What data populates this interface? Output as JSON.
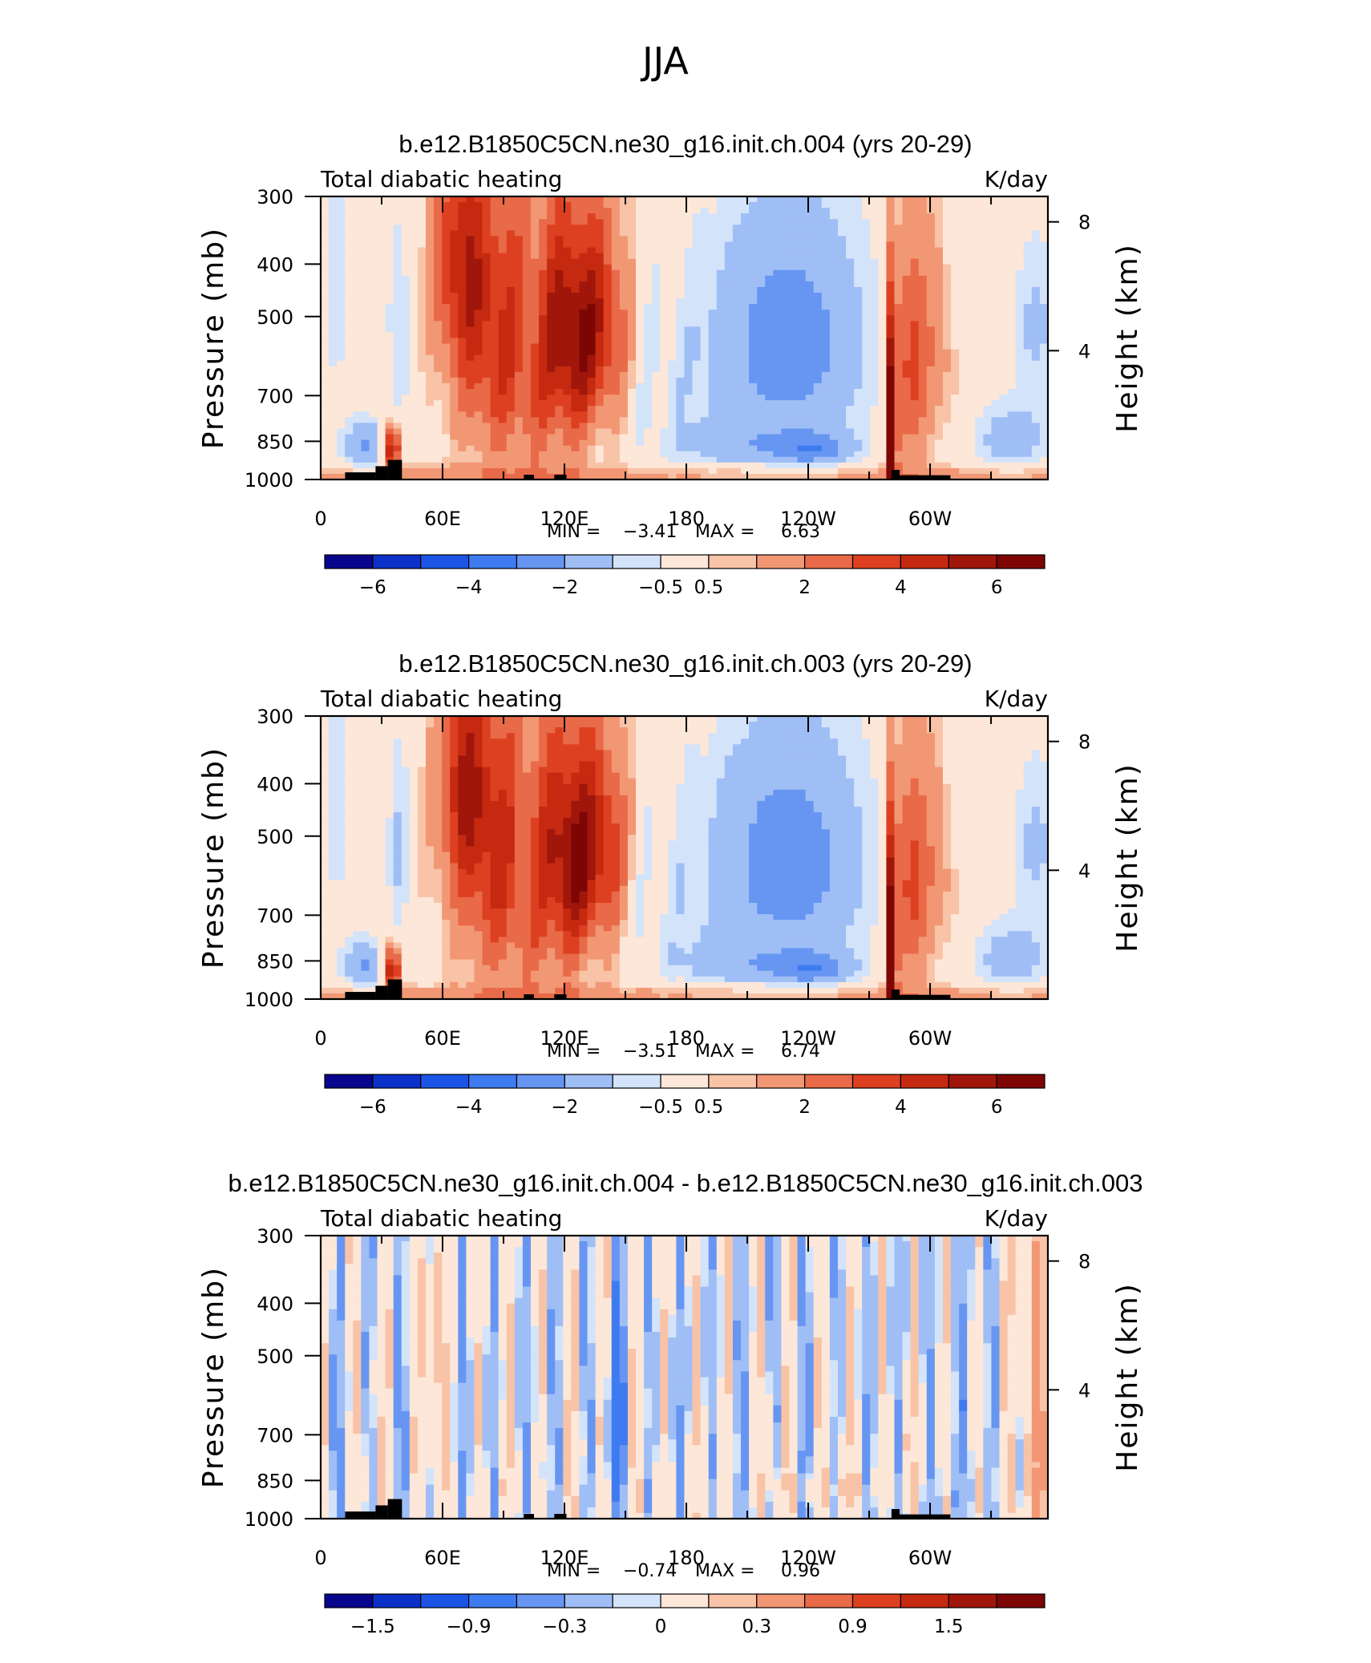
{
  "figure": {
    "suptitle": "JJA"
  },
  "colors": [
    "#08068d",
    "#0b31c8",
    "#1c55e6",
    "#3f7bf0",
    "#6696f2",
    "#9fbef6",
    "#d3e3fa",
    "#fde7d8",
    "#f8c3a7",
    "#f29774",
    "#e86a48",
    "#dd4020",
    "#c52a10",
    "#a0160b",
    "#7d0605"
  ],
  "chart_data": [
    {
      "type": "heatmap",
      "title": "b.e12.B1850C5CN.ne30_g16.init.ch.004 (yrs 20-29)",
      "left_label": "Total diabatic heating",
      "units": "K/day",
      "ylabel": "Pressure (mb)",
      "y2label": "Height (km)",
      "yticks": [
        "300",
        "400",
        "500",
        "700",
        "850",
        "1000"
      ],
      "ytick_values": [
        300,
        400,
        500,
        700,
        850,
        1000
      ],
      "y2ticks": [
        "8",
        "4"
      ],
      "y2tick_values": [
        8,
        4
      ],
      "xticks": [
        "0",
        "60E",
        "120E",
        "180",
        "120W",
        "60W"
      ],
      "xtick_values": [
        0,
        60,
        120,
        180,
        240,
        300
      ],
      "xlim": [
        0,
        358
      ],
      "ylim": [
        1000,
        300
      ],
      "stats": {
        "min_label": "MIN =",
        "min": "−3.41",
        "max_label": "MAX =",
        "max": "6.63"
      },
      "colorbar": {
        "labels": [
          "−6",
          "−4",
          "−2",
          "−0.5",
          "0.5",
          "2",
          "4",
          "6"
        ]
      },
      "field": "full"
    },
    {
      "type": "heatmap",
      "title": "b.e12.B1850C5CN.ne30_g16.init.ch.003 (yrs 20-29)",
      "left_label": "Total diabatic heating",
      "units": "K/day",
      "ylabel": "Pressure (mb)",
      "y2label": "Height (km)",
      "yticks": [
        "300",
        "400",
        "500",
        "700",
        "850",
        "1000"
      ],
      "ytick_values": [
        300,
        400,
        500,
        700,
        850,
        1000
      ],
      "y2ticks": [
        "8",
        "4"
      ],
      "y2tick_values": [
        8,
        4
      ],
      "xticks": [
        "0",
        "60E",
        "120E",
        "180",
        "120W",
        "60W"
      ],
      "xtick_values": [
        0,
        60,
        120,
        180,
        240,
        300
      ],
      "xlim": [
        0,
        358
      ],
      "ylim": [
        1000,
        300
      ],
      "stats": {
        "min_label": "MIN =",
        "min": "−3.51",
        "max_label": "MAX =",
        "max": "6.74"
      },
      "colorbar": {
        "labels": [
          "−6",
          "−4",
          "−2",
          "−0.5",
          "0.5",
          "2",
          "4",
          "6"
        ]
      },
      "field": "full"
    },
    {
      "type": "heatmap",
      "title": "b.e12.B1850C5CN.ne30_g16.init.ch.004 - b.e12.B1850C5CN.ne30_g16.init.ch.003",
      "left_label": "Total diabatic heating",
      "units": "K/day",
      "ylabel": "Pressure (mb)",
      "y2label": "Height (km)",
      "yticks": [
        "300",
        "400",
        "500",
        "700",
        "850",
        "1000"
      ],
      "ytick_values": [
        300,
        400,
        500,
        700,
        850,
        1000
      ],
      "y2ticks": [
        "8",
        "4"
      ],
      "y2tick_values": [
        8,
        4
      ],
      "xticks": [
        "0",
        "60E",
        "120E",
        "180",
        "120W",
        "60W"
      ],
      "xtick_values": [
        0,
        60,
        120,
        180,
        240,
        300
      ],
      "xlim": [
        0,
        358
      ],
      "ylim": [
        1000,
        300
      ],
      "stats": {
        "min_label": "MIN =",
        "min": "−0.74",
        "max_label": "MAX =",
        "max": "0.96"
      },
      "colorbar": {
        "labels": [
          "−1.5",
          "−0.9",
          "−0.3",
          "0",
          "0.3",
          "0.9",
          "1.5"
        ]
      },
      "field": "diff"
    }
  ]
}
